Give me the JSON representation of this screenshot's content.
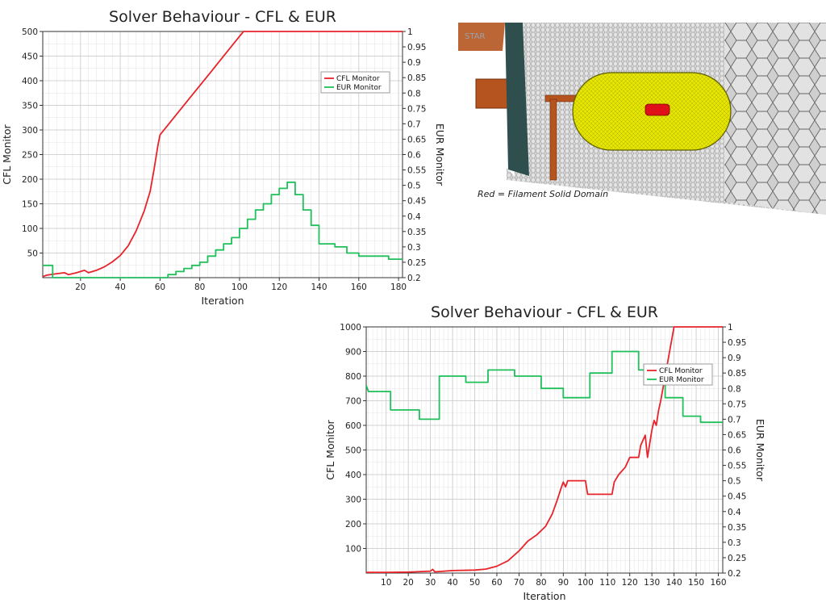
{
  "chart_data": [
    {
      "type": "line",
      "title": "Solver Behaviour - CFL & EUR",
      "xlabel": "Iteration",
      "ylabel": "CFL Monitor",
      "y2label": "EUR Monitor",
      "xlim": [
        1,
        182
      ],
      "ylim": [
        0,
        500
      ],
      "y2lim": [
        0.2,
        1.0
      ],
      "x_ticks": [
        20,
        40,
        60,
        80,
        100,
        120,
        140,
        160,
        180
      ],
      "y_ticks": [
        50,
        100,
        150,
        200,
        250,
        300,
        350,
        400,
        450,
        500
      ],
      "y2_ticks": [
        0.2,
        0.25,
        0.3,
        0.35,
        0.4,
        0.45,
        0.5,
        0.55,
        0.6,
        0.65,
        0.7,
        0.75,
        0.8,
        0.85,
        0.9,
        0.95,
        1
      ],
      "grid": true,
      "legend_position": "top-right",
      "series": [
        {
          "name": "CFL Monitor",
          "color": "#e8232a",
          "axis": "left",
          "points": [
            [
              1,
              2
            ],
            [
              3,
              5
            ],
            [
              8,
              8
            ],
            [
              12,
              10
            ],
            [
              14,
              6
            ],
            [
              18,
              10
            ],
            [
              22,
              15
            ],
            [
              24,
              10
            ],
            [
              28,
              15
            ],
            [
              32,
              22
            ],
            [
              36,
              32
            ],
            [
              40,
              45
            ],
            [
              44,
              65
            ],
            [
              48,
              95
            ],
            [
              52,
              135
            ],
            [
              55,
              175
            ],
            [
              57,
              220
            ],
            [
              59,
              270
            ],
            [
              60,
              290
            ],
            [
              65,
              315
            ],
            [
              70,
              340
            ],
            [
              75,
              365
            ],
            [
              80,
              390
            ],
            [
              85,
              415
            ],
            [
              90,
              440
            ],
            [
              95,
              465
            ],
            [
              100,
              490
            ],
            [
              102,
              500
            ],
            [
              182,
              500
            ]
          ]
        },
        {
          "name": "EUR Monitor",
          "color": "#1fbf5a",
          "axis": "right",
          "points": [
            [
              1,
              0.24
            ],
            [
              2,
              0.24
            ],
            [
              2,
              0.24
            ],
            [
              6,
              0.24
            ],
            [
              6,
              0.2
            ],
            [
              64,
              0.2
            ],
            [
              64,
              0.21
            ],
            [
              68,
              0.21
            ],
            [
              68,
              0.22
            ],
            [
              72,
              0.22
            ],
            [
              72,
              0.23
            ],
            [
              76,
              0.23
            ],
            [
              76,
              0.24
            ],
            [
              80,
              0.24
            ],
            [
              80,
              0.25
            ],
            [
              84,
              0.25
            ],
            [
              84,
              0.27
            ],
            [
              88,
              0.27
            ],
            [
              88,
              0.29
            ],
            [
              92,
              0.29
            ],
            [
              92,
              0.31
            ],
            [
              96,
              0.31
            ],
            [
              96,
              0.33
            ],
            [
              100,
              0.33
            ],
            [
              100,
              0.36
            ],
            [
              104,
              0.36
            ],
            [
              104,
              0.39
            ],
            [
              108,
              0.39
            ],
            [
              108,
              0.42
            ],
            [
              112,
              0.42
            ],
            [
              112,
              0.44
            ],
            [
              116,
              0.44
            ],
            [
              116,
              0.47
            ],
            [
              120,
              0.47
            ],
            [
              120,
              0.49
            ],
            [
              124,
              0.49
            ],
            [
              124,
              0.51
            ],
            [
              128,
              0.51
            ],
            [
              128,
              0.47
            ],
            [
              132,
              0.47
            ],
            [
              132,
              0.42
            ],
            [
              136,
              0.42
            ],
            [
              136,
              0.37
            ],
            [
              140,
              0.37
            ],
            [
              140,
              0.31
            ],
            [
              148,
              0.31
            ],
            [
              148,
              0.3
            ],
            [
              154,
              0.3
            ],
            [
              154,
              0.28
            ],
            [
              160,
              0.28
            ],
            [
              160,
              0.27
            ],
            [
              175,
              0.27
            ],
            [
              175,
              0.26
            ],
            [
              180,
              0.26
            ],
            [
              182,
              0.26
            ]
          ]
        }
      ]
    },
    {
      "type": "line",
      "title": "Solver Behaviour - CFL & EUR",
      "xlabel": "Iteration",
      "ylabel": "CFL Monitor",
      "y2label": "EUR Monitor",
      "xlim": [
        1,
        162
      ],
      "ylim": [
        0,
        1000
      ],
      "y2lim": [
        0.2,
        1.0
      ],
      "x_ticks": [
        10,
        20,
        30,
        40,
        50,
        60,
        70,
        80,
        90,
        100,
        110,
        120,
        130,
        140,
        150,
        160
      ],
      "y_ticks": [
        100,
        200,
        300,
        400,
        500,
        600,
        700,
        800,
        900,
        1000
      ],
      "y2_ticks": [
        0.2,
        0.25,
        0.3,
        0.35,
        0.4,
        0.45,
        0.5,
        0.55,
        0.6,
        0.65,
        0.7,
        0.75,
        0.8,
        0.85,
        0.9,
        0.95,
        1
      ],
      "grid": true,
      "legend_position": "top-right",
      "series": [
        {
          "name": "CFL Monitor",
          "color": "#e8232a",
          "axis": "left",
          "points": [
            [
              1,
              3
            ],
            [
              10,
              3
            ],
            [
              20,
              4
            ],
            [
              30,
              8
            ],
            [
              31,
              15
            ],
            [
              32,
              5
            ],
            [
              40,
              10
            ],
            [
              50,
              12
            ],
            [
              55,
              16
            ],
            [
              60,
              28
            ],
            [
              65,
              50
            ],
            [
              70,
              90
            ],
            [
              74,
              130
            ],
            [
              78,
              155
            ],
            [
              82,
              190
            ],
            [
              85,
              240
            ],
            [
              87,
              290
            ],
            [
              89,
              345
            ],
            [
              90,
              370
            ],
            [
              91,
              350
            ],
            [
              92,
              375
            ],
            [
              100,
              375
            ],
            [
              101,
              320
            ],
            [
              112,
              320
            ],
            [
              113,
              370
            ],
            [
              115,
              400
            ],
            [
              118,
              430
            ],
            [
              120,
              470
            ],
            [
              124,
              470
            ],
            [
              125,
              520
            ],
            [
              127,
              560
            ],
            [
              128,
              470
            ],
            [
              130,
              580
            ],
            [
              131,
              620
            ],
            [
              132,
              600
            ],
            [
              133,
              660
            ],
            [
              134,
              700
            ],
            [
              136,
              800
            ],
            [
              138,
              900
            ],
            [
              140,
              1000
            ],
            [
              162,
              1000
            ]
          ]
        },
        {
          "name": "EUR Monitor",
          "color": "#1fbf5a",
          "axis": "right",
          "points": [
            [
              1,
              0.81
            ],
            [
              2,
              0.79
            ],
            [
              12,
              0.79
            ],
            [
              12,
              0.73
            ],
            [
              25,
              0.73
            ],
            [
              25,
              0.7
            ],
            [
              34,
              0.7
            ],
            [
              34,
              0.84
            ],
            [
              46,
              0.84
            ],
            [
              46,
              0.82
            ],
            [
              56,
              0.82
            ],
            [
              56,
              0.86
            ],
            [
              68,
              0.86
            ],
            [
              68,
              0.84
            ],
            [
              80,
              0.84
            ],
            [
              80,
              0.8
            ],
            [
              90,
              0.8
            ],
            [
              90,
              0.77
            ],
            [
              102,
              0.77
            ],
            [
              102,
              0.85
            ],
            [
              112,
              0.85
            ],
            [
              112,
              0.92
            ],
            [
              124,
              0.92
            ],
            [
              124,
              0.86
            ],
            [
              136,
              0.86
            ],
            [
              136,
              0.77
            ],
            [
              144,
              0.77
            ],
            [
              144,
              0.71
            ],
            [
              152,
              0.71
            ],
            [
              152,
              0.69
            ],
            [
              162,
              0.69
            ]
          ]
        }
      ]
    }
  ],
  "cfd_image": {
    "caption": "Red = Filament Solid Domain",
    "logo_text": "STAR"
  }
}
